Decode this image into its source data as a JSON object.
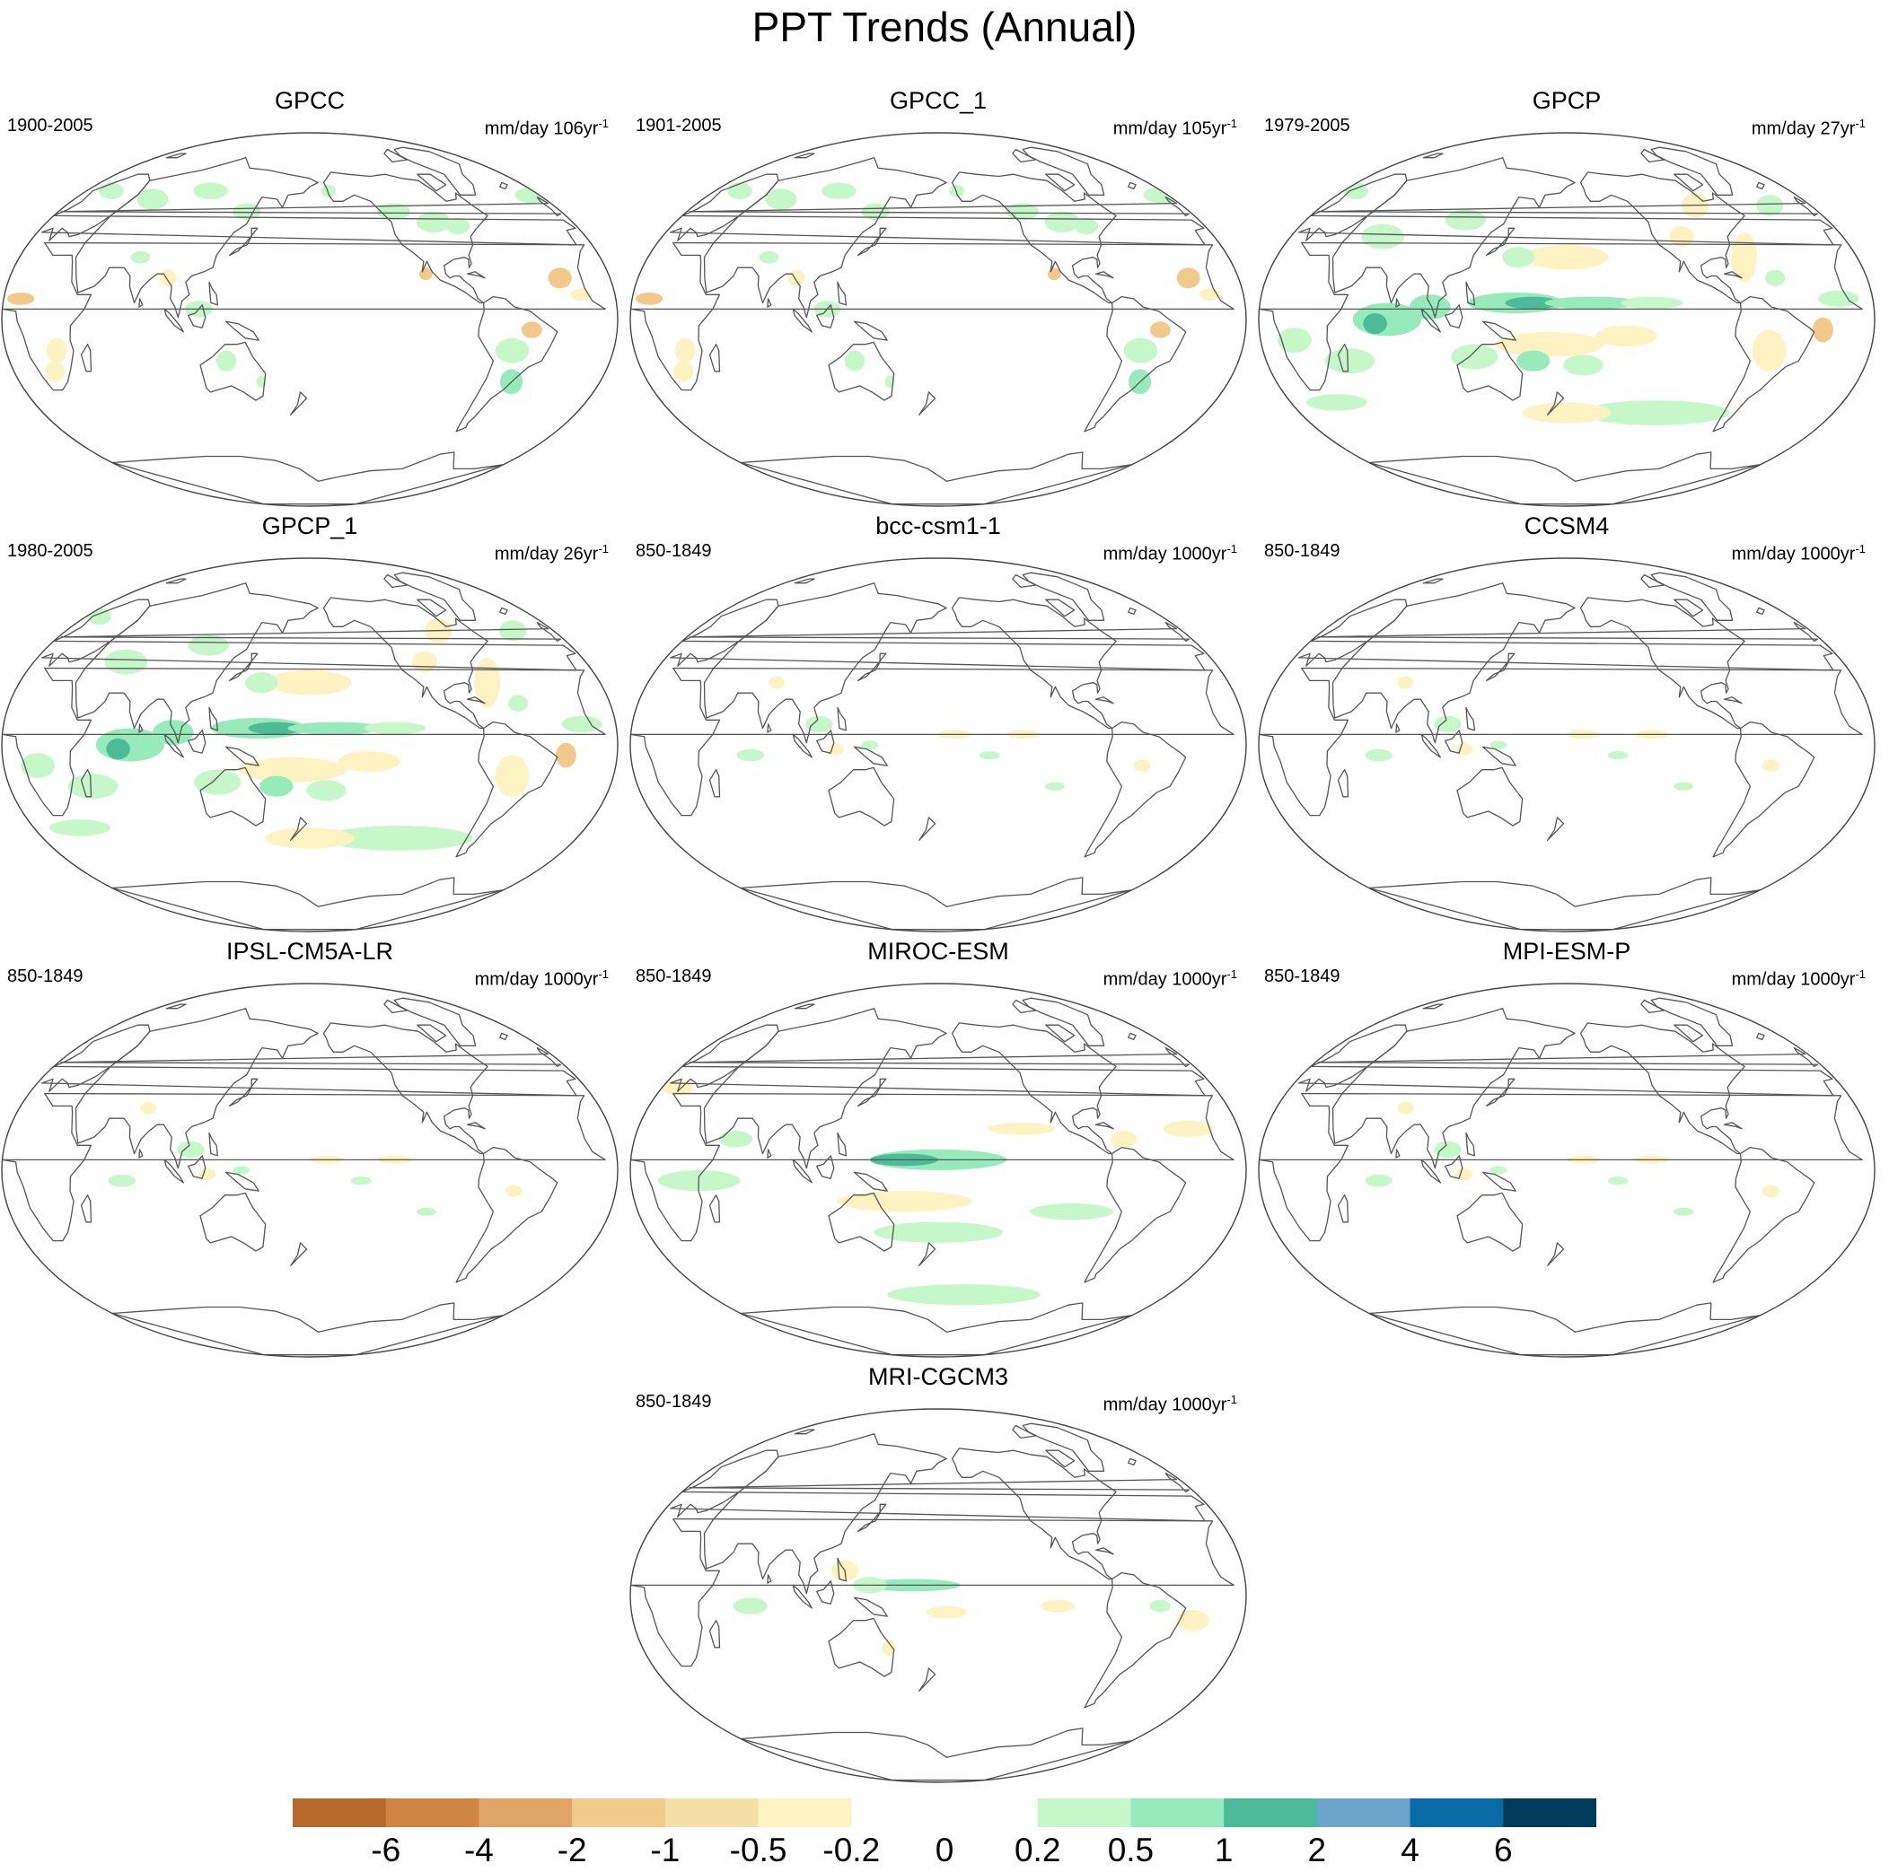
{
  "title": "PPT Trends (Annual)",
  "panels": [
    {
      "title": "GPCC",
      "period": "1900-2005",
      "units": "mm/day 106yr",
      "units_exp": "-1",
      "pattern": "obs_long"
    },
    {
      "title": "GPCC_1",
      "period": "1901-2005",
      "units": "mm/day 105yr",
      "units_exp": "-1",
      "pattern": "obs_long"
    },
    {
      "title": "GPCP",
      "period": "1979-2005",
      "units": "mm/day 27yr",
      "units_exp": "-1",
      "pattern": "obs_sat"
    },
    {
      "title": "GPCP_1",
      "period": "1980-2005",
      "units": "mm/day 26yr",
      "units_exp": "-1",
      "pattern": "obs_sat"
    },
    {
      "title": "bcc-csm1-1",
      "period": "850-1849",
      "units": "mm/day 1000yr",
      "units_exp": "-1",
      "pattern": "model_weak"
    },
    {
      "title": "CCSM4",
      "period": "850-1849",
      "units": "mm/day 1000yr",
      "units_exp": "-1",
      "pattern": "model_weak"
    },
    {
      "title": "IPSL-CM5A-LR",
      "period": "850-1849",
      "units": "mm/day 1000yr",
      "units_exp": "-1",
      "pattern": "model_weak"
    },
    {
      "title": "MIROC-ESM",
      "period": "850-1849",
      "units": "mm/day 1000yr",
      "units_exp": "-1",
      "pattern": "model_strong"
    },
    {
      "title": "MPI-ESM-P",
      "period": "850-1849",
      "units": "mm/day 1000yr",
      "units_exp": "-1",
      "pattern": "model_weak"
    },
    {
      "title": "MRI-CGCM3",
      "period": "850-1849",
      "units": "mm/day 1000yr",
      "units_exp": "-1",
      "pattern": "model_mid"
    }
  ],
  "colorbar": {
    "labels": [
      "-6",
      "-4",
      "-2",
      "-1",
      "-0.5",
      "-0.2",
      "0",
      "0.2",
      "0.5",
      "1",
      "2",
      "4",
      "6"
    ],
    "colors": [
      "#b5692a",
      "#cf8643",
      "#e0a467",
      "#f1c98b",
      "#f6dfa4",
      "#fcf2c2",
      "#ffffff",
      "#ffffff",
      "#c6f7c8",
      "#97ebbb",
      "#4dbb98",
      "#6aa6c9",
      "#0a6aa6",
      "#003b5c"
    ]
  },
  "map_colors": {
    "coast": "#555555",
    "frame": "#444444",
    "dry_light": "#fcf2c2",
    "dry_mid": "#f1c98b",
    "dry_strong": "#d99a5a",
    "wet_light": "#c6f7c8",
    "wet_mid": "#97ebbb",
    "wet_strong": "#4dbb98"
  }
}
